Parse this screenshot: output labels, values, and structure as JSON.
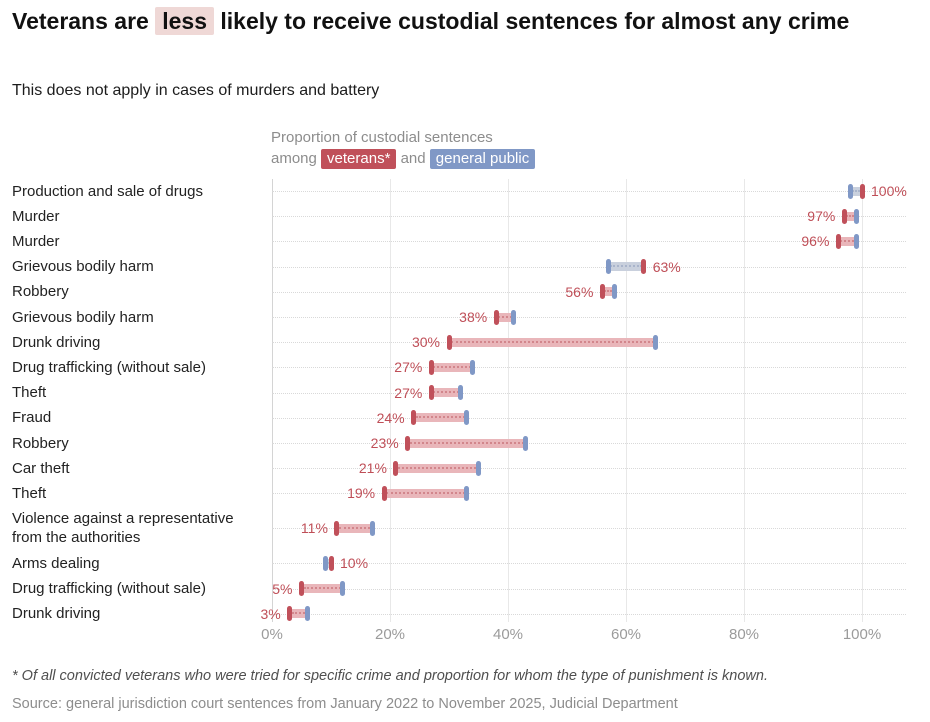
{
  "header": {
    "title_before": "Veterans are",
    "title_highlight": "less",
    "title_after": "likely to receive custodial sentences for almost any crime",
    "subtitle": "This does not apply in cases of murders and battery"
  },
  "legend": {
    "line1": "Proportion of custodial sentences",
    "prefix": "among",
    "veterans_label": "veterans*",
    "conjunction": "and",
    "public_label": "general public"
  },
  "chart_data": {
    "type": "dumbbell",
    "title": "Proportion of custodial sentences among veterans and general public",
    "xlabel": "",
    "ylabel": "",
    "xlim": [
      0,
      107
    ],
    "grid": "vertical",
    "x_ticks": [
      0,
      20,
      40,
      60,
      80,
      100
    ],
    "x_tick_labels": [
      "0%",
      "20%",
      "40%",
      "60%",
      "80%",
      "100%"
    ],
    "series_names": [
      "veterans",
      "general public"
    ],
    "rows": [
      {
        "label": "Production and sale of drugs",
        "veterans": 100,
        "public": 98,
        "value_label": "100%"
      },
      {
        "label": "Murder",
        "veterans": 97,
        "public": 99,
        "value_label": "97%"
      },
      {
        "label": "Murder",
        "veterans": 96,
        "public": 99,
        "value_label": "96%"
      },
      {
        "label": "Grievous bodily harm",
        "veterans": 63,
        "public": 57,
        "value_label": "63%"
      },
      {
        "label": "Robbery",
        "veterans": 56,
        "public": 58,
        "value_label": "56%"
      },
      {
        "label": "Grievous bodily harm",
        "veterans": 38,
        "public": 41,
        "value_label": "38%"
      },
      {
        "label": "Drunk driving",
        "veterans": 30,
        "public": 65,
        "value_label": "30%"
      },
      {
        "label": "Drug trafficking (without sale)",
        "veterans": 27,
        "public": 34,
        "value_label": "27%"
      },
      {
        "label": "Theft",
        "veterans": 27,
        "public": 32,
        "value_label": "27%"
      },
      {
        "label": "Fraud",
        "veterans": 24,
        "public": 33,
        "value_label": "24%"
      },
      {
        "label": "Robbery",
        "veterans": 23,
        "public": 43,
        "value_label": "23%"
      },
      {
        "label": "Car theft",
        "veterans": 21,
        "public": 35,
        "value_label": "21%"
      },
      {
        "label": "Theft",
        "veterans": 19,
        "public": 33,
        "value_label": "19%"
      },
      {
        "label": "Violence against a representative from the authorities",
        "veterans": 11,
        "public": 17,
        "value_label": "11%"
      },
      {
        "label": "Arms dealing",
        "veterans": 10,
        "public": 9,
        "value_label": "10%"
      },
      {
        "label": "Drug trafficking (without sale)",
        "veterans": 5,
        "public": 12,
        "value_label": "5%"
      },
      {
        "label": "Drunk driving",
        "veterans": 3,
        "public": 6,
        "value_label": "3%"
      }
    ],
    "colors": {
      "veterans_accent": "#c0505a",
      "public_accent": "#8098c6",
      "fill_when_veterans_lower": "#e9b6ba",
      "fill_when_veterans_higher": "#c9d0dd",
      "dots_pink": "#d2868c",
      "dots_blue": "#a9b4cb",
      "value_label_color": "#bf4e57",
      "title_highlight_bg": "#efd8d6"
    }
  },
  "footer": {
    "footnote": "* Of all convicted veterans who were tried for specific crime and proportion for whom the type of punishment is known.",
    "source": "Source: general jurisdiction court sentences from January 2022 to November 2025, Judicial Department"
  }
}
